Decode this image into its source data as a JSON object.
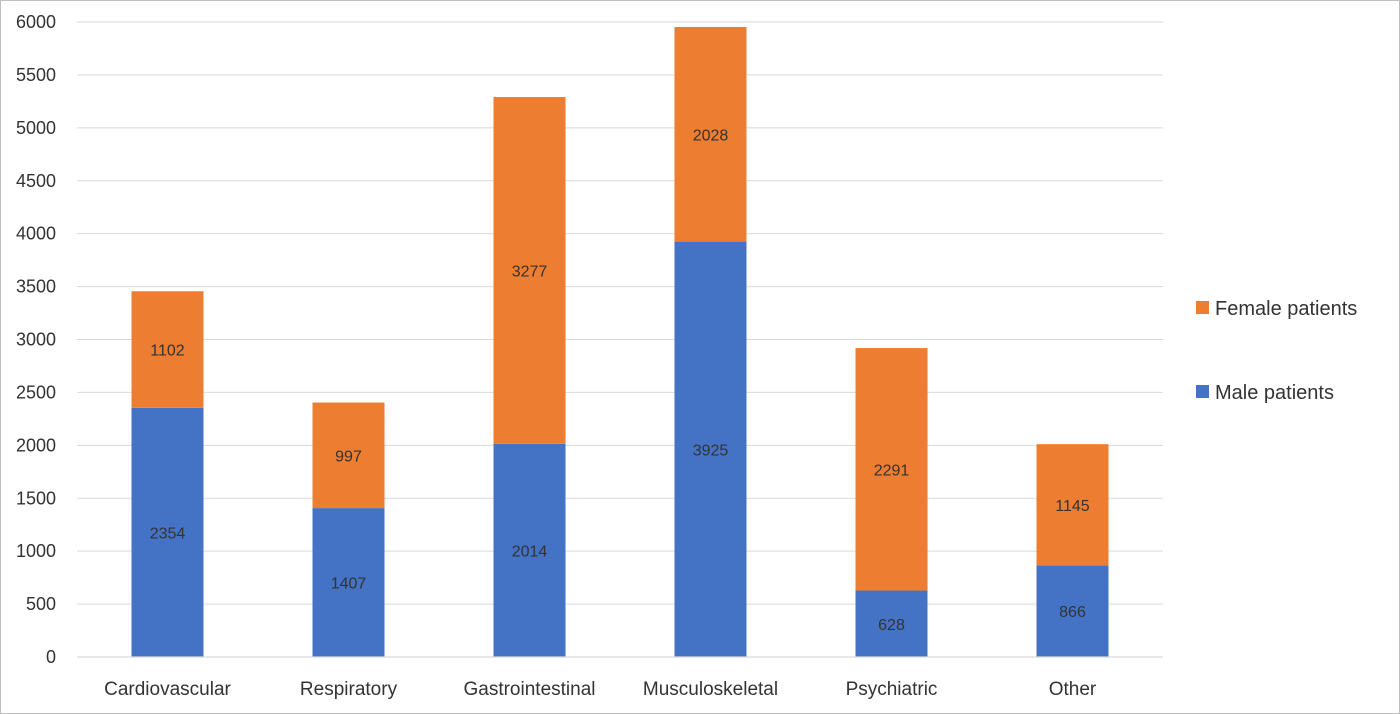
{
  "chart_data": {
    "type": "bar",
    "stacked": true,
    "categories": [
      "Cardiovascular",
      "Respiratory",
      "Gastrointestinal",
      "Musculoskeletal",
      "Psychiatric",
      "Other"
    ],
    "series": [
      {
        "name": "Male patients",
        "color": "#4472C4",
        "values": [
          2354,
          1407,
          2014,
          3925,
          628,
          866
        ]
      },
      {
        "name": "Female patients",
        "color": "#ED7D31",
        "values": [
          1102,
          997,
          3277,
          2028,
          2291,
          1145
        ]
      }
    ],
    "ylim": [
      0,
      6000
    ],
    "ytick_step": 500,
    "yticks": [
      "0",
      "500",
      "1000",
      "1500",
      "2000",
      "2500",
      "3000",
      "3500",
      "4000",
      "4500",
      "5000",
      "5500",
      "6000"
    ],
    "grid": true,
    "legend_position": "right",
    "legend_order": [
      "Female patients",
      "Male patients"
    ],
    "data_labels": true,
    "title": "",
    "xlabel": "",
    "ylabel": ""
  }
}
